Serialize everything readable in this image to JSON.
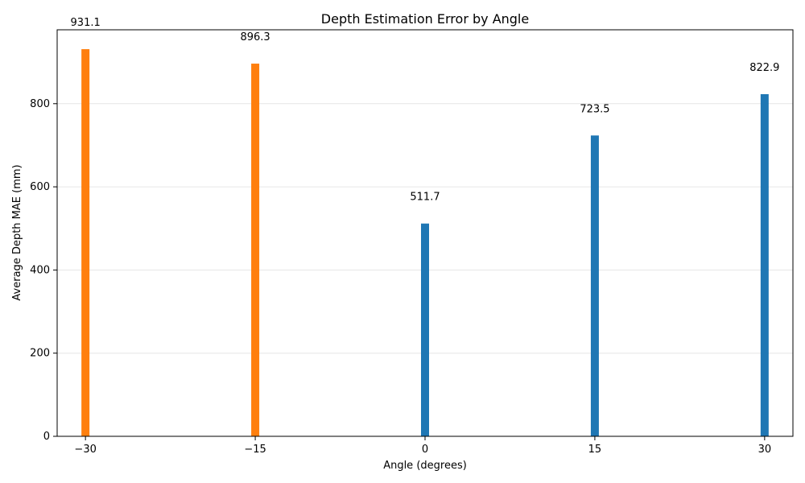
{
  "chart_data": {
    "type": "bar",
    "title": "Depth Estimation Error by Angle",
    "xlabel": "Angle (degrees)",
    "ylabel": "Average Depth MAE (mm)",
    "categories": [
      -30,
      -15,
      0,
      15,
      30
    ],
    "x_tick_labels": [
      "−30",
      "−15",
      "0",
      "15",
      "30"
    ],
    "values": [
      931.1,
      896.3,
      511.7,
      723.5,
      822.9
    ],
    "data_labels": [
      "931.1",
      "896.3",
      "511.7",
      "723.5",
      "822.9"
    ],
    "bar_colors": [
      "#ff7f0e",
      "#ff7f0e",
      "#1f77b4",
      "#1f77b4",
      "#1f77b4"
    ],
    "y_ticks": [
      0,
      200,
      400,
      600,
      800
    ],
    "y_tick_labels": [
      "0",
      "200",
      "400",
      "600",
      "800"
    ],
    "xlim": [
      -32.5,
      32.5
    ],
    "ylim": [
      0,
      977.7
    ],
    "grid": "y",
    "colors": {
      "negative_angle_bar": "#ff7f0e",
      "non_negative_angle_bar": "#1f77b4",
      "grid": "#e6e6e6",
      "axis": "#000000"
    }
  }
}
